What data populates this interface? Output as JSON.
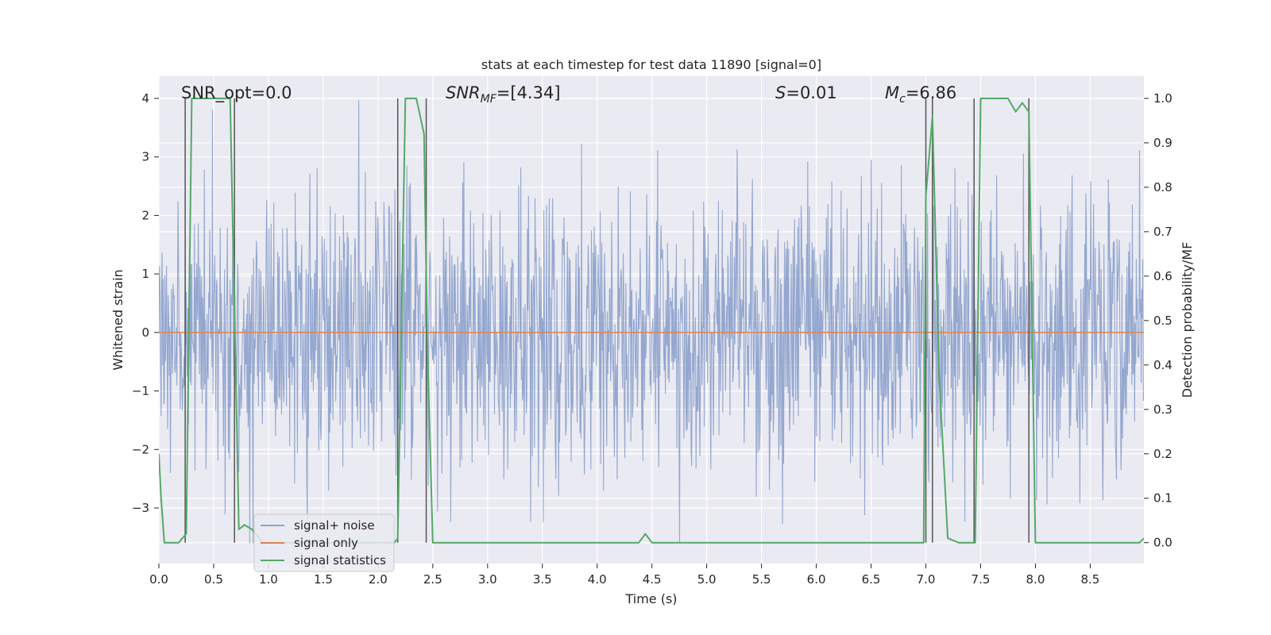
{
  "chart_data": {
    "type": "line",
    "title": "stats at each timestep for test data 11890 [signal=0]",
    "xlabel": "Time (s)",
    "ylabel": "Whitened strain",
    "y2label": "Detection probability/MF",
    "xlim": [
      0.0,
      8.99
    ],
    "ylim": [
      -3.95,
      4.38
    ],
    "y2lim": [
      -0.047,
      1.05
    ],
    "xticks": [
      0.0,
      0.5,
      1.0,
      1.5,
      2.0,
      2.5,
      3.0,
      3.5,
      4.0,
      4.5,
      5.0,
      5.5,
      6.0,
      6.5,
      7.0,
      7.5,
      8.0,
      8.5
    ],
    "xtick_labels": [
      "0.0",
      "0.5",
      "1.0",
      "1.5",
      "2.0",
      "2.5",
      "3.0",
      "3.5",
      "4.0",
      "4.5",
      "5.0",
      "5.5",
      "6.0",
      "6.5",
      "7.0",
      "7.5",
      "8.0",
      "8.5"
    ],
    "yticks": [
      -3,
      -2,
      -1,
      0,
      1,
      2,
      3,
      4
    ],
    "ytick_labels": [
      "−3",
      "−2",
      "−1",
      "0",
      "1",
      "2",
      "3",
      "4"
    ],
    "y2ticks": [
      0.0,
      0.1,
      0.2,
      0.3,
      0.4,
      0.5,
      0.6,
      0.7,
      0.8,
      0.9,
      1.0
    ],
    "y2tick_labels": [
      "0.0",
      "0.1",
      "0.2",
      "0.3",
      "0.4",
      "0.5",
      "0.6",
      "0.7",
      "0.8",
      "0.9",
      "1.0"
    ],
    "legend": {
      "position": "lower-left",
      "entries": [
        {
          "label": "signal+ noise",
          "color": "#8fa3cc"
        },
        {
          "label": "signal only",
          "color": "#dd8452"
        },
        {
          "label": "signal statistics",
          "color": "#55a868"
        }
      ]
    },
    "annotations": [
      "SNR_opt=0.0",
      "SNR_MF=[4.34]",
      "S=0.01",
      "M_c=6.86"
    ],
    "series": [
      {
        "name": "signal+ noise",
        "axis": "left",
        "style": "noise",
        "color": "#8fa3cc",
        "t_start": 0.0,
        "t_end": 8.99,
        "n_samples": 1800,
        "amplitude_sigma": 1.0,
        "peak_range": [
          -3.6,
          4.0
        ]
      },
      {
        "name": "signal only",
        "axis": "left",
        "style": "line",
        "color": "#dd8452",
        "x": [
          0.0,
          8.99
        ],
        "y": [
          0.0,
          0.0
        ]
      },
      {
        "name": "signal statistics",
        "axis": "right",
        "style": "line",
        "color": "#55a868",
        "x": [
          0.0,
          0.02,
          0.05,
          0.1,
          0.18,
          0.25,
          0.3,
          0.35,
          0.5,
          0.65,
          0.7,
          0.73,
          0.78,
          0.85,
          0.95,
          1.05,
          2.15,
          2.18,
          2.25,
          2.35,
          2.42,
          2.45,
          2.5,
          4.38,
          4.44,
          4.5,
          6.5,
          6.98,
          7.0,
          7.06,
          7.12,
          7.2,
          7.3,
          7.43,
          7.45,
          7.5,
          7.75,
          7.82,
          7.88,
          7.94,
          8.0,
          8.95,
          8.99
        ],
        "y": [
          0.2,
          0.1,
          0.0,
          0.0,
          0.0,
          0.02,
          1.0,
          1.0,
          1.0,
          1.0,
          0.4,
          0.03,
          0.04,
          0.03,
          0.0,
          0.0,
          0.0,
          0.01,
          1.0,
          1.0,
          0.92,
          0.45,
          0.0,
          0.0,
          0.02,
          0.0,
          0.0,
          0.0,
          0.78,
          0.96,
          0.38,
          0.01,
          0.0,
          0.0,
          0.0,
          1.0,
          1.0,
          0.97,
          0.99,
          0.97,
          0.0,
          0.0,
          0.01
        ]
      }
    ],
    "vlines": [
      0.24,
      0.69,
      2.18,
      2.44,
      7.0,
      7.06,
      7.44,
      7.94
    ]
  }
}
